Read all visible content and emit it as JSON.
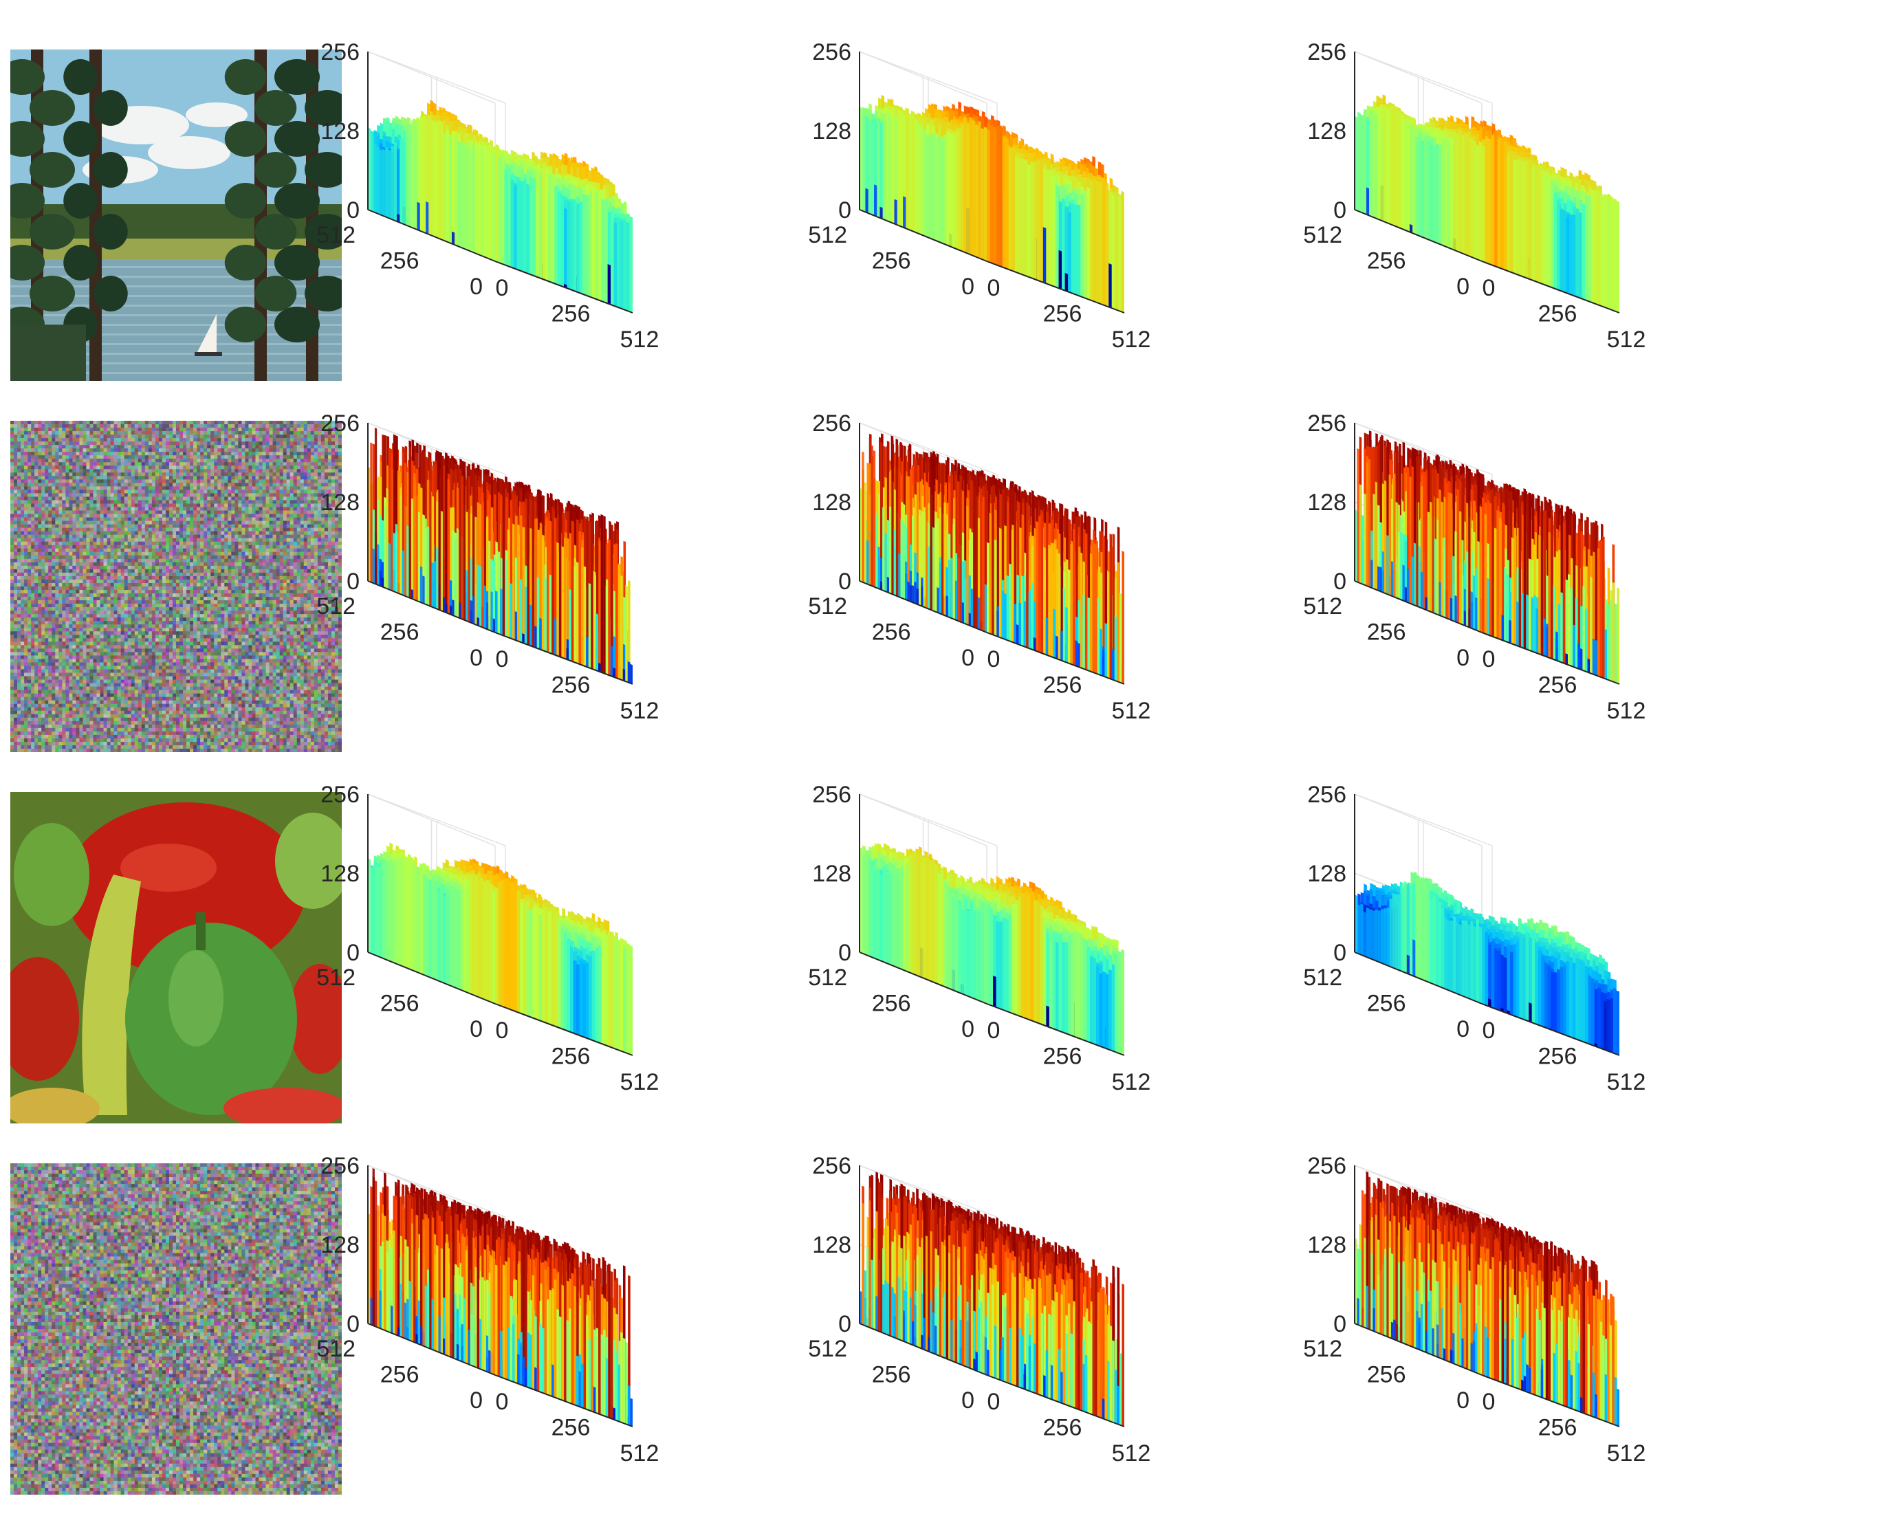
{
  "colors": {
    "axis_line": "#262626",
    "grid_line": "#e3e3e3",
    "colormap": [
      "#00008f",
      "#0040ff",
      "#00bfff",
      "#40ffbf",
      "#bfff40",
      "#ffbf00",
      "#ff4000",
      "#8f0000"
    ]
  },
  "chart_data": {
    "type": "surface-grid",
    "rows": [
      {
        "image": {
          "kind": "photo",
          "subject": "lake-trees-sailboat"
        },
        "plots": [
          {
            "type": "surface",
            "channel": "R",
            "x_ticks": [
              "0",
              "256",
              "512"
            ],
            "y_ticks": [
              "0",
              "256",
              "512"
            ],
            "z_ticks": [
              "0",
              "128",
              "256"
            ],
            "xlim": [
              0,
              512
            ],
            "ylim": [
              0,
              512
            ],
            "zlim": [
              0,
              256
            ],
            "pattern": "natural",
            "level": 0.62,
            "floor": 0.0
          },
          {
            "type": "surface",
            "channel": "G",
            "x_ticks": [
              "0",
              "256",
              "512"
            ],
            "y_ticks": [
              "0",
              "256",
              "512"
            ],
            "z_ticks": [
              "0",
              "128",
              "256"
            ],
            "xlim": [
              0,
              512
            ],
            "ylim": [
              0,
              512
            ],
            "zlim": [
              0,
              256
            ],
            "pattern": "natural",
            "level": 0.72,
            "floor": 0.0
          },
          {
            "type": "surface",
            "channel": "B",
            "x_ticks": [
              "0",
              "256",
              "512"
            ],
            "y_ticks": [
              "0",
              "256",
              "512"
            ],
            "z_ticks": [
              "0",
              "128",
              "256"
            ],
            "xlim": [
              0,
              512
            ],
            "ylim": [
              0,
              512
            ],
            "zlim": [
              0,
              256
            ],
            "pattern": "natural",
            "level": 0.68,
            "floor": 0.0
          }
        ]
      },
      {
        "image": {
          "kind": "noise"
        },
        "plots": [
          {
            "type": "surface",
            "channel": "R",
            "x_ticks": [
              "0",
              "256",
              "512"
            ],
            "y_ticks": [
              "0",
              "256",
              "512"
            ],
            "z_ticks": [
              "0",
              "128",
              "256"
            ],
            "xlim": [
              0,
              512
            ],
            "ylim": [
              0,
              512
            ],
            "zlim": [
              0,
              256
            ],
            "pattern": "noise",
            "level": 0.5,
            "floor": 0.0
          },
          {
            "type": "surface",
            "channel": "G",
            "x_ticks": [
              "0",
              "256",
              "512"
            ],
            "y_ticks": [
              "0",
              "256",
              "512"
            ],
            "z_ticks": [
              "0",
              "128",
              "256"
            ],
            "xlim": [
              0,
              512
            ],
            "ylim": [
              0,
              512
            ],
            "zlim": [
              0,
              256
            ],
            "pattern": "noise",
            "level": 0.5,
            "floor": 0.0
          },
          {
            "type": "surface",
            "channel": "B",
            "x_ticks": [
              "0",
              "256",
              "512"
            ],
            "y_ticks": [
              "0",
              "256",
              "512"
            ],
            "z_ticks": [
              "0",
              "128",
              "256"
            ],
            "xlim": [
              0,
              512
            ],
            "ylim": [
              0,
              512
            ],
            "zlim": [
              0,
              256
            ],
            "pattern": "noise",
            "level": 0.5,
            "floor": 0.0
          }
        ]
      },
      {
        "image": {
          "kind": "photo",
          "subject": "peppers"
        },
        "plots": [
          {
            "type": "surface",
            "channel": "R",
            "x_ticks": [
              "0",
              "256",
              "512"
            ],
            "y_ticks": [
              "0",
              "256",
              "512"
            ],
            "z_ticks": [
              "0",
              "128",
              "256"
            ],
            "xlim": [
              0,
              512
            ],
            "ylim": [
              0,
              512
            ],
            "zlim": [
              0,
              256
            ],
            "pattern": "natural",
            "level": 0.66,
            "floor": 0.0
          },
          {
            "type": "surface",
            "channel": "G",
            "x_ticks": [
              "0",
              "256",
              "512"
            ],
            "y_ticks": [
              "0",
              "256",
              "512"
            ],
            "z_ticks": [
              "0",
              "128",
              "256"
            ],
            "xlim": [
              0,
              512
            ],
            "ylim": [
              0,
              512
            ],
            "zlim": [
              0,
              256
            ],
            "pattern": "natural",
            "level": 0.64,
            "floor": 0.0
          },
          {
            "type": "surface",
            "channel": "B",
            "x_ticks": [
              "0",
              "256",
              "512"
            ],
            "y_ticks": [
              "0",
              "256",
              "512"
            ],
            "z_ticks": [
              "0",
              "128",
              "256"
            ],
            "xlim": [
              0,
              512
            ],
            "ylim": [
              0,
              512
            ],
            "zlim": [
              0,
              256
            ],
            "pattern": "natural",
            "level": 0.45,
            "floor": 0.0
          }
        ]
      },
      {
        "image": {
          "kind": "noise"
        },
        "plots": [
          {
            "type": "surface",
            "channel": "R",
            "x_ticks": [
              "0",
              "256",
              "512"
            ],
            "y_ticks": [
              "0",
              "256",
              "512"
            ],
            "z_ticks": [
              "0",
              "128",
              "256"
            ],
            "xlim": [
              0,
              512
            ],
            "ylim": [
              0,
              512
            ],
            "zlim": [
              0,
              256
            ],
            "pattern": "noise",
            "level": 0.5,
            "floor": 0.0
          },
          {
            "type": "surface",
            "channel": "G",
            "x_ticks": [
              "0",
              "256",
              "512"
            ],
            "y_ticks": [
              "0",
              "256",
              "512"
            ],
            "z_ticks": [
              "0",
              "128",
              "256"
            ],
            "xlim": [
              0,
              512
            ],
            "ylim": [
              0,
              512
            ],
            "zlim": [
              0,
              256
            ],
            "pattern": "noise",
            "level": 0.5,
            "floor": 0.0
          },
          {
            "type": "surface",
            "channel": "B",
            "x_ticks": [
              "0",
              "256",
              "512"
            ],
            "y_ticks": [
              "0",
              "256",
              "512"
            ],
            "z_ticks": [
              "0",
              "128",
              "256"
            ],
            "xlim": [
              0,
              512
            ],
            "ylim": [
              0,
              512
            ],
            "zlim": [
              0,
              256
            ],
            "pattern": "noise",
            "level": 0.5,
            "floor": 0.0
          }
        ]
      }
    ]
  }
}
